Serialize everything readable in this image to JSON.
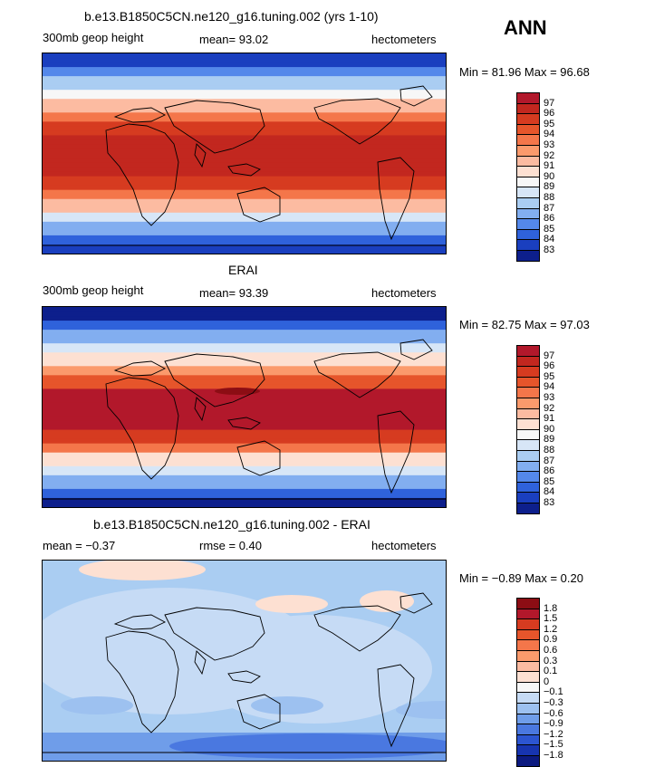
{
  "season": "ANN",
  "panels": [
    {
      "id": "model",
      "title": "b.e13.B1850C5CN.ne120_g16.tuning.002 (yrs 1-10)",
      "left_label": "300mb geop height",
      "center_label": "mean=  93.02",
      "right_label": "hectometers",
      "minmax_label": "Min =  81.96 Max =  96.68",
      "colorbar_ticks": [
        "97",
        "96",
        "95",
        "94",
        "93",
        "92",
        "91",
        "90",
        "89",
        "88",
        "87",
        "86",
        "85",
        "84",
        "83"
      ],
      "colorbar_colors": [
        "#b2182b",
        "#c2271f",
        "#d63b20",
        "#e6552b",
        "#f4764a",
        "#fb9a6c",
        "#fcbba1",
        "#fde0d2",
        "#f7f7f7",
        "#d7e6f7",
        "#aacdf2",
        "#82aef0",
        "#5488ea",
        "#2f62db",
        "#1a3fbf",
        "#0d1f8c"
      ]
    },
    {
      "id": "obs",
      "title": "ERAI",
      "left_label": "300mb geop height",
      "center_label": "mean=  93.39",
      "right_label": "hectometers",
      "minmax_label": "Min =  82.75 Max =  97.03",
      "colorbar_ticks": [
        "97",
        "96",
        "95",
        "94",
        "93",
        "92",
        "91",
        "90",
        "89",
        "88",
        "87",
        "86",
        "85",
        "84",
        "83"
      ],
      "colorbar_colors": [
        "#b2182b",
        "#c2271f",
        "#d63b20",
        "#e6552b",
        "#f4764a",
        "#fb9a6c",
        "#fcbba1",
        "#fde0d2",
        "#f7f7f7",
        "#d7e6f7",
        "#aacdf2",
        "#82aef0",
        "#5488ea",
        "#2f62db",
        "#1a3fbf",
        "#0d1f8c"
      ]
    },
    {
      "id": "diff",
      "title": "b.e13.B1850C5CN.ne120_g16.tuning.002 - ERAI",
      "left_label": "mean =  −0.37",
      "center_label": "rmse =   0.40",
      "right_label": "hectometers",
      "minmax_label": "Min =  −0.89 Max =   0.20",
      "colorbar_ticks": [
        "1.8",
        "1.5",
        "1.2",
        "0.9",
        "0.6",
        "0.3",
        "0.1",
        "0",
        "−0.1",
        "−0.3",
        "−0.6",
        "−0.9",
        "−1.2",
        "−1.5",
        "−1.8"
      ],
      "colorbar_colors": [
        "#8c0d14",
        "#b2182b",
        "#d63b20",
        "#e6552b",
        "#f4764a",
        "#fb9a6c",
        "#fcbba1",
        "#fde0d2",
        "#f7f7f7",
        "#c6dbf5",
        "#9dc1f0",
        "#6f9de9",
        "#4a78e0",
        "#2c55d1",
        "#1734b0",
        "#0c1a80"
      ]
    }
  ]
}
